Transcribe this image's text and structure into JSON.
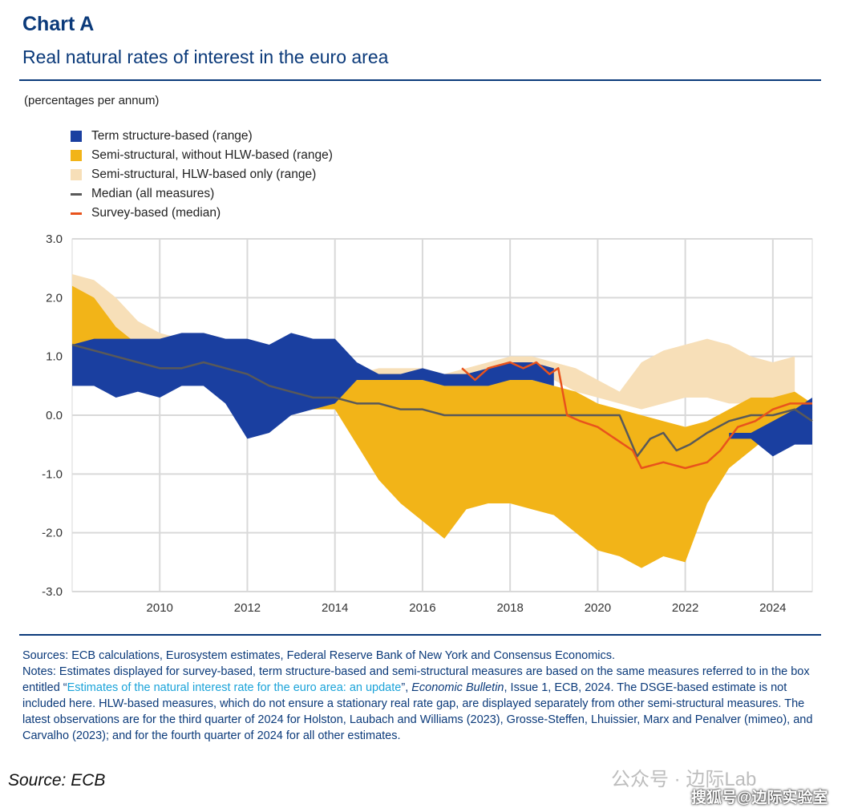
{
  "header": {
    "title": "Chart A",
    "subtitle": "Real natural rates of interest in the euro area",
    "units": "(percentages per annum)"
  },
  "chart_data": {
    "type": "area",
    "ylim": [
      -3,
      3
    ],
    "xlim": [
      2008.0,
      2024.9
    ],
    "yticks": [
      "3.0",
      "2.0",
      "1.0",
      "0.0",
      "-1.0",
      "-2.0",
      "-3.0"
    ],
    "ytick_values": [
      3,
      2,
      1,
      0,
      -1,
      -2,
      -3
    ],
    "xticks": [
      "2010",
      "2012",
      "2014",
      "2016",
      "2018",
      "2020",
      "2022",
      "2024"
    ],
    "xtick_values": [
      2010,
      2012,
      2014,
      2016,
      2018,
      2020,
      2022,
      2024
    ],
    "grid": true,
    "legend_position": "top-left",
    "colors": {
      "term": "#1a3fa0",
      "semi": "#f2b418",
      "hlw": "#f7dfb8",
      "median": "#595959",
      "survey": "#e8531c"
    },
    "series": [
      {
        "name": "Term structure-based (range)",
        "kind": "range",
        "color_key": "term",
        "x": [
          2008.0,
          2008.5,
          2009.0,
          2009.5,
          2010.0,
          2010.5,
          2011.0,
          2011.5,
          2012.0,
          2012.5,
          2013.0,
          2013.5,
          2014.0,
          2014.5,
          2015.0,
          2015.5,
          2016.0,
          2016.5,
          2017.0,
          2017.5,
          2018.0,
          2018.5,
          2019.0,
          2019.5,
          2020.0,
          2020.5,
          2021.0,
          2021.5,
          2022.0,
          2022.5,
          2023.0,
          2023.5,
          2024.0,
          2024.5,
          2024.9
        ],
        "low": [
          0.5,
          0.5,
          0.3,
          0.4,
          0.3,
          0.5,
          0.5,
          0.2,
          -0.4,
          -0.3,
          0.0,
          0.1,
          0.2,
          0.6,
          0.6,
          0.6,
          0.6,
          0.5,
          0.5,
          0.5,
          0.6,
          0.6,
          0.5,
          null,
          null,
          null,
          null,
          null,
          null,
          null,
          -0.4,
          -0.4,
          -0.7,
          -0.5,
          -0.5
        ],
        "high": [
          1.2,
          1.3,
          1.3,
          1.3,
          1.3,
          1.4,
          1.4,
          1.3,
          1.3,
          1.2,
          1.4,
          1.3,
          1.3,
          0.9,
          0.7,
          0.7,
          0.8,
          0.7,
          0.7,
          0.8,
          0.9,
          0.9,
          0.8,
          null,
          null,
          null,
          null,
          null,
          null,
          null,
          -0.3,
          -0.3,
          -0.1,
          0.1,
          0.3
        ]
      },
      {
        "name": "Semi-structural, without HLW-based (range)",
        "kind": "range",
        "color_key": "semi",
        "x": [
          2008.0,
          2008.5,
          2009.0,
          2009.5,
          2010.0,
          2010.5,
          2011.0,
          2011.5,
          2012.0,
          2012.5,
          2013.0,
          2013.5,
          2014.0,
          2014.5,
          2015.0,
          2015.5,
          2016.0,
          2016.5,
          2017.0,
          2017.5,
          2018.0,
          2018.5,
          2019.0,
          2019.5,
          2020.0,
          2020.5,
          2021.0,
          2021.5,
          2022.0,
          2022.5,
          2023.0,
          2023.5,
          2024.0,
          2024.5,
          2024.9
        ],
        "low": [
          1.2,
          1.0,
          0.8,
          0.6,
          0.5,
          0.5,
          0.6,
          0.5,
          0.4,
          0.3,
          0.2,
          0.1,
          0.1,
          -0.5,
          -1.1,
          -1.5,
          -1.8,
          -2.1,
          -1.6,
          -1.5,
          -1.5,
          -1.6,
          -1.7,
          -2.0,
          -2.3,
          -2.4,
          -2.6,
          -2.4,
          -2.5,
          -1.5,
          -0.9,
          -0.6,
          -0.3,
          -0.3,
          -0.2
        ],
        "high": [
          2.2,
          2.0,
          1.5,
          1.2,
          1.0,
          1.0,
          1.2,
          1.1,
          0.9,
          0.7,
          0.6,
          0.5,
          0.6,
          0.6,
          0.7,
          0.7,
          0.6,
          0.5,
          0.5,
          0.5,
          0.7,
          0.6,
          0.5,
          0.4,
          0.2,
          0.1,
          0.0,
          -0.1,
          -0.2,
          -0.1,
          0.1,
          0.3,
          0.3,
          0.4,
          0.2
        ]
      },
      {
        "name": "Semi-structural, HLW-based only (range)",
        "kind": "range",
        "color_key": "hlw",
        "x": [
          2008.0,
          2008.5,
          2009.0,
          2009.5,
          2010.0,
          2010.5,
          2011.0,
          2011.5,
          2012.0,
          2012.5,
          2013.0,
          2013.5,
          2014.0,
          2014.5,
          2015.0,
          2015.5,
          2016.0,
          2016.5,
          2017.0,
          2017.5,
          2018.0,
          2018.5,
          2019.0,
          2019.5,
          2020.0,
          2020.5,
          2021.0,
          2021.5,
          2022.0,
          2022.5,
          2023.0,
          2023.5,
          2024.0,
          2024.5
        ],
        "low": [
          1.8,
          1.6,
          1.3,
          1.0,
          0.9,
          0.9,
          1.0,
          0.9,
          0.7,
          0.6,
          0.5,
          0.4,
          0.4,
          0.4,
          0.5,
          0.5,
          0.5,
          0.5,
          0.6,
          0.6,
          0.7,
          0.7,
          0.6,
          0.4,
          0.3,
          0.2,
          0.1,
          0.2,
          0.3,
          0.3,
          0.2,
          0.2,
          0.2,
          0.2
        ],
        "high": [
          2.4,
          2.3,
          2.0,
          1.6,
          1.4,
          1.3,
          1.4,
          1.3,
          1.1,
          0.9,
          0.8,
          0.7,
          0.7,
          0.7,
          0.8,
          0.8,
          0.8,
          0.7,
          0.8,
          0.9,
          1.0,
          1.0,
          0.9,
          0.8,
          0.6,
          0.4,
          0.9,
          1.1,
          1.2,
          1.3,
          1.2,
          1.0,
          0.9,
          1.0
        ]
      },
      {
        "name": "Median (all measures)",
        "kind": "line",
        "color_key": "median",
        "x": [
          2008.0,
          2008.5,
          2009.0,
          2009.5,
          2010.0,
          2010.5,
          2011.0,
          2011.5,
          2012.0,
          2012.5,
          2013.0,
          2013.5,
          2014.0,
          2014.5,
          2015.0,
          2015.5,
          2016.0,
          2016.5,
          2017.0,
          2017.5,
          2018.0,
          2018.5,
          2019.0,
          2019.5,
          2020.0,
          2020.5,
          2020.9,
          2021.2,
          2021.5,
          2021.8,
          2022.1,
          2022.5,
          2023.0,
          2023.5,
          2024.0,
          2024.5,
          2024.9
        ],
        "y": [
          1.2,
          1.1,
          1.0,
          0.9,
          0.8,
          0.8,
          0.9,
          0.8,
          0.7,
          0.5,
          0.4,
          0.3,
          0.3,
          0.2,
          0.2,
          0.1,
          0.1,
          0.0,
          0.0,
          0.0,
          0.0,
          0.0,
          0.0,
          0.0,
          0.0,
          0.0,
          -0.7,
          -0.4,
          -0.3,
          -0.6,
          -0.5,
          -0.3,
          -0.1,
          0.0,
          0.0,
          0.1,
          -0.1
        ]
      },
      {
        "name": "Survey-based (median)",
        "kind": "line",
        "color_key": "survey",
        "x": [
          2016.9,
          2017.2,
          2017.5,
          2018.0,
          2018.3,
          2018.6,
          2018.9,
          2019.1,
          2019.3,
          2019.6,
          2020.0,
          2020.4,
          2020.8,
          2021.0,
          2021.5,
          2022.0,
          2022.5,
          2022.8,
          2023.2,
          2023.6,
          2024.0,
          2024.4,
          2024.9
        ],
        "y": [
          0.8,
          0.6,
          0.8,
          0.9,
          0.8,
          0.9,
          0.7,
          0.8,
          0.0,
          -0.1,
          -0.2,
          -0.4,
          -0.6,
          -0.9,
          -0.8,
          -0.9,
          -0.8,
          -0.6,
          -0.2,
          -0.1,
          0.1,
          0.2,
          0.2
        ]
      }
    ]
  },
  "footer": {
    "sources": "Sources: ECB calculations, Eurosystem estimates, Federal Reserve Bank of New York and Consensus Economics.",
    "notes_before_link": "Notes: Estimates displayed for survey-based, term structure-based and semi-structural measures are based on the same measures referred to in the box entitled “",
    "notes_link": "Estimates of the natural interest rate for the euro area: an update",
    "notes_after_link_1": "”, ",
    "notes_italic": "Economic Bulletin",
    "notes_after_link_2": ", Issue 1, ECB, 2024. The DSGE-based estimate is not included here. HLW-based measures, which do not ensure a stationary real rate gap, are displayed separately from other semi-structural measures. The latest observations are for the third quarter of 2024 for Holston, Laubach and Williams (2023), Grosse-Steffen, Lhuissier, Marx and Penalver (mimeo), and Carvalho (2023); and for the fourth quarter of 2024 for all other estimates.",
    "source": "Source: ECB"
  },
  "watermark": {
    "line1": "公众号 · 边际Lab",
    "line2": "搜狐号@边际实验室"
  }
}
